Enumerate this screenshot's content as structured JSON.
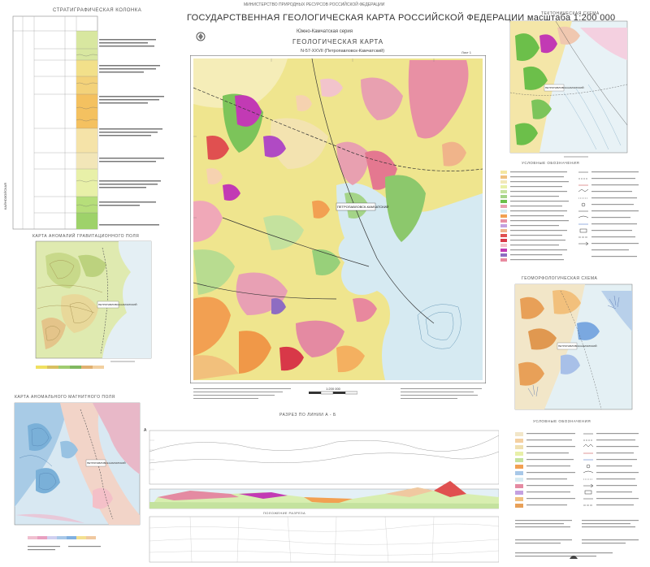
{
  "header": {
    "ministry": "МИНИСТЕРСТВО ПРИРОДНЫХ РЕСУРСОВ РОССИЙСКОЙ ФЕДЕРАЦИИ",
    "title": "ГОСУДАРСТВЕННАЯ ГЕОЛОГИЧЕСКАЯ КАРТА РОССИЙСКОЙ ФЕДЕРАЦИИ масштаба 1:200 000",
    "series": "Южно-Камчатская серия",
    "map_type": "ГЕОЛОГИЧЕСКАЯ КАРТА",
    "sheet": "N-57-XXVII (Петропавловск-Камчатский)",
    "sheet_number": "Лист 1"
  },
  "sections": {
    "strat_column": "СТРАТИГРАФИЧЕСКАЯ КОЛОНКА",
    "tectonic_scheme": "ТЕКТОНИЧЕСКАЯ СХЕМА",
    "gravity_map": "КАРТА АНОМАЛИЙ ГРАВИТАЦИОННОГО ПОЛЯ",
    "magnetic_map": "КАРТА АНОМАЛЬНОГО МАГНИТНОГО ПОЛЯ",
    "geomorph_scheme": "ГЕОМОРФОЛОГИЧЕСКАЯ СХЕМА",
    "legend": "УСЛОВНЫЕ ОБОЗНАЧЕНИЯ",
    "section_title": "РАЗРЕЗ ПО ЛИНИИ А - Б",
    "section_lower": "ПОЛОЖЕНИЕ РАЗРЕЗА",
    "city_label": "ПЕТРОПАВЛОВСК-КАМЧАТСКИЙ",
    "scale": "1:200 000",
    "cenozoic": "КАЙНОЗОЙСКАЯ",
    "section_mark": "А"
  },
  "colors": {
    "sea": "#d4e8f2",
    "land_base": "#f0e6a0",
    "pink": "#e88aa0",
    "green": "#6cbf4a",
    "magenta": "#c23ab4",
    "orange": "#f2a052",
    "purple": "#8e6cc2",
    "red": "#d83848"
  }
}
